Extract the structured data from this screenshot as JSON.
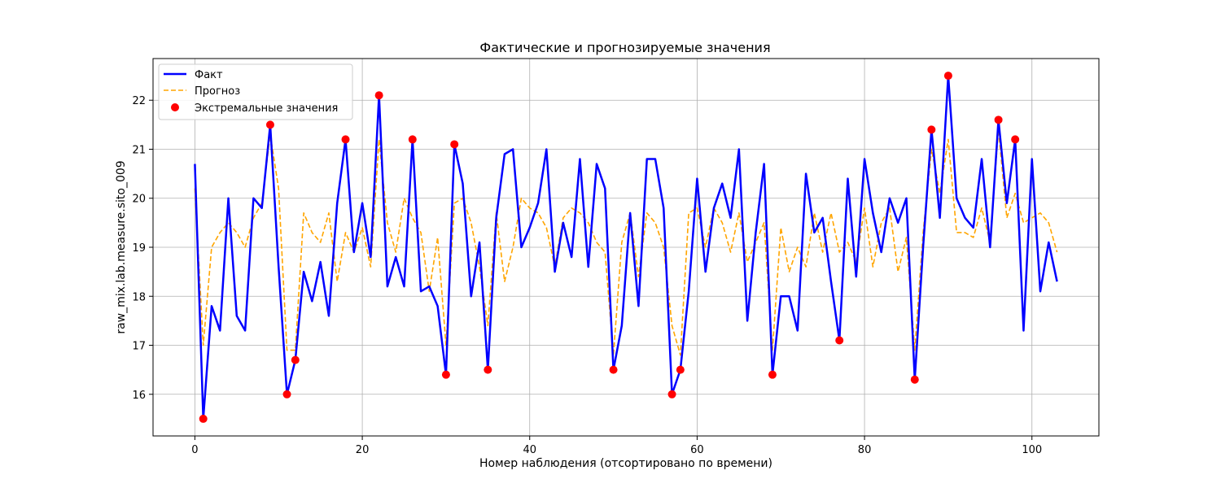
{
  "chart_data": {
    "type": "line",
    "title": "Фактические и прогнозируемые значения",
    "xlabel": "Номер наблюдения (отсортировано по времени)",
    "ylabel": "raw_mix.lab.measure.sito_009",
    "xlim": [
      -5,
      108
    ],
    "ylim": [
      15.15,
      22.85
    ],
    "xticks": [
      0,
      20,
      40,
      60,
      80,
      100
    ],
    "yticks": [
      16,
      17,
      18,
      19,
      20,
      21,
      22
    ],
    "grid": true,
    "legend_position": "top-left",
    "series": [
      {
        "name": "Факт",
        "style": "solid",
        "color": "#0000ff",
        "values": [
          20.7,
          15.5,
          17.8,
          17.3,
          20.0,
          17.6,
          17.3,
          20.0,
          19.8,
          21.5,
          18.6,
          16.0,
          16.7,
          18.5,
          17.9,
          18.7,
          17.6,
          19.9,
          21.2,
          18.9,
          19.9,
          18.8,
          22.1,
          18.2,
          18.8,
          18.2,
          21.2,
          18.1,
          18.2,
          17.8,
          16.4,
          21.1,
          20.3,
          18.0,
          19.1,
          16.5,
          19.6,
          20.9,
          21.0,
          19.0,
          19.4,
          19.9,
          21.0,
          18.5,
          19.5,
          18.8,
          20.8,
          18.6,
          20.7,
          20.2,
          16.5,
          17.4,
          19.7,
          17.8,
          20.8,
          20.8,
          19.8,
          16.0,
          16.5,
          18.1,
          20.4,
          18.5,
          19.8,
          20.3,
          19.6,
          21.0,
          17.5,
          19.3,
          20.7,
          16.4,
          18.0,
          18.0,
          17.3,
          20.5,
          19.3,
          19.6,
          18.3,
          17.1,
          20.4,
          18.4,
          20.8,
          19.7,
          18.9,
          20.0,
          19.5,
          20.0,
          16.3,
          19.0,
          21.4,
          19.6,
          22.5,
          20.0,
          19.6,
          19.4,
          20.8,
          19.0,
          21.6,
          19.9,
          21.2,
          17.3,
          20.8,
          18.1,
          19.1,
          18.3
        ]
      },
      {
        "name": "Прогноз",
        "style": "dashed",
        "color": "#ffa500",
        "values": [
          20.2,
          17.0,
          19.0,
          19.3,
          19.5,
          19.3,
          19.0,
          19.6,
          19.9,
          21.3,
          20.2,
          16.9,
          16.9,
          19.7,
          19.3,
          19.1,
          19.7,
          18.3,
          19.3,
          18.9,
          19.4,
          18.6,
          21.2,
          19.5,
          18.9,
          20.0,
          19.6,
          19.3,
          18.1,
          19.2,
          17.0,
          19.9,
          20.0,
          19.5,
          18.6,
          17.4,
          19.7,
          18.3,
          19.0,
          20.0,
          19.8,
          19.7,
          19.4,
          18.6,
          19.6,
          19.8,
          19.7,
          19.5,
          19.1,
          18.9,
          16.8,
          19.1,
          19.7,
          18.4,
          19.7,
          19.5,
          19.0,
          17.4,
          16.8,
          19.7,
          19.8,
          19.0,
          19.8,
          19.5,
          18.9,
          19.7,
          18.7,
          19.1,
          19.5,
          16.9,
          19.4,
          18.5,
          19.0,
          18.6,
          19.7,
          18.9,
          19.7,
          18.9,
          19.1,
          18.7,
          19.8,
          18.6,
          19.5,
          19.8,
          18.5,
          19.2,
          16.9,
          19.3,
          21.0,
          20.1,
          21.2,
          19.3,
          19.3,
          19.2,
          19.8,
          19.1,
          21.4,
          19.6,
          20.1,
          19.5,
          19.6,
          19.7,
          19.5,
          18.9
        ]
      }
    ],
    "scatter": {
      "name": "Экстремальные значения",
      "color": "#ff0000",
      "points": [
        {
          "x": 1,
          "y": 15.5
        },
        {
          "x": 9,
          "y": 21.5
        },
        {
          "x": 11,
          "y": 16.0
        },
        {
          "x": 12,
          "y": 16.7
        },
        {
          "x": 18,
          "y": 21.2
        },
        {
          "x": 22,
          "y": 22.1
        },
        {
          "x": 26,
          "y": 21.2
        },
        {
          "x": 30,
          "y": 16.4
        },
        {
          "x": 31,
          "y": 21.1
        },
        {
          "x": 35,
          "y": 16.5
        },
        {
          "x": 50,
          "y": 16.5
        },
        {
          "x": 57,
          "y": 16.0
        },
        {
          "x": 58,
          "y": 16.5
        },
        {
          "x": 69,
          "y": 16.4
        },
        {
          "x": 77,
          "y": 17.1
        },
        {
          "x": 86,
          "y": 16.3
        },
        {
          "x": 88,
          "y": 21.4
        },
        {
          "x": 90,
          "y": 22.5
        },
        {
          "x": 96,
          "y": 21.6
        },
        {
          "x": 98,
          "y": 21.2
        }
      ]
    }
  }
}
